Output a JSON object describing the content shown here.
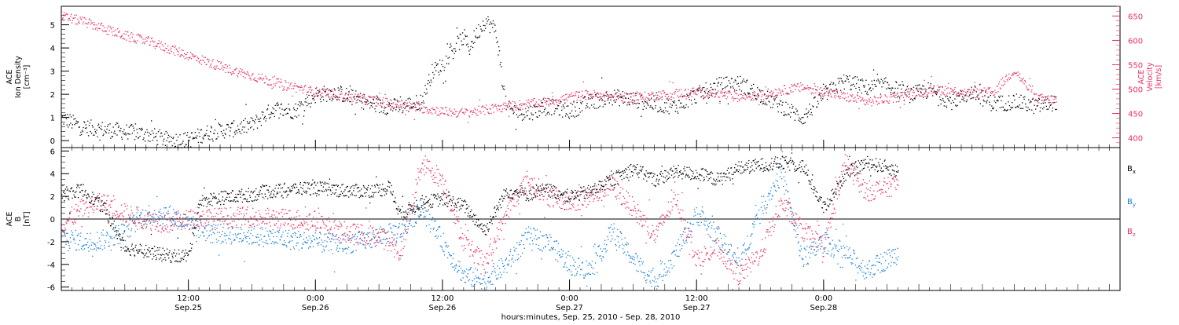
{
  "colors": {
    "black": "#000000",
    "pink": "#e8305e",
    "blue": "#1a7fd6"
  },
  "chart_data": [
    {
      "type": "scatter",
      "panel": "top",
      "ylabel_lines": [
        "ACE",
        "Ion Density",
        "[cm⁻³]"
      ],
      "y2label_lines": [
        "ACE",
        "Velocity",
        "[km/s]"
      ],
      "xlim": [
        -4,
        96
      ],
      "ylim": [
        -0.3,
        5.8
      ],
      "y_ticks": [
        0,
        1,
        2,
        3,
        4,
        5
      ],
      "y2lim": [
        380,
        670
      ],
      "y2_ticks": [
        400,
        450,
        500,
        550,
        600,
        650
      ],
      "series": [
        {
          "role": "Ion Density",
          "color": "black",
          "axis": "left",
          "x": [
            -4,
            -2,
            0,
            2,
            4,
            6,
            8,
            10,
            12,
            14,
            16,
            18,
            20,
            22,
            24,
            26,
            28,
            30,
            31,
            32,
            33,
            34,
            34.5,
            35,
            36,
            37,
            38,
            40,
            42,
            44,
            46,
            48,
            50,
            52,
            54,
            56,
            58,
            60,
            62,
            64,
            66,
            68,
            70,
            72,
            74,
            76,
            78,
            80,
            82,
            84,
            86,
            88,
            90
          ],
          "values": [
            1.0,
            0.6,
            0.5,
            0.4,
            0.3,
            0.05,
            0.05,
            0.4,
            0.5,
            0.7,
            1.4,
            1.3,
            2.0,
            2.1,
            1.8,
            1.5,
            1.5,
            1.7,
            3.0,
            3.3,
            4.0,
            4.5,
            4.0,
            4.5,
            5.2,
            4.8,
            1.4,
            1.2,
            1.5,
            1.3,
            1.7,
            1.9,
            1.8,
            1.6,
            1.5,
            2.0,
            2.4,
            2.5,
            2.0,
            1.5,
            1.0,
            2.0,
            2.6,
            2.3,
            2.4,
            2.0,
            2.2,
            1.7,
            2.1,
            1.6,
            1.7,
            1.5,
            1.7
          ]
        },
        {
          "role": "Velocity",
          "color": "pink",
          "axis": "right",
          "x": [
            -4,
            -2,
            0,
            2,
            4,
            6,
            8,
            10,
            12,
            14,
            16,
            18,
            20,
            22,
            24,
            26,
            28,
            30,
            32,
            34,
            36,
            38,
            40,
            42,
            44,
            46,
            48,
            50,
            52,
            54,
            56,
            58,
            60,
            62,
            64,
            66,
            68,
            70,
            72,
            74,
            76,
            78,
            80,
            82,
            84,
            86,
            88,
            90
          ],
          "values": [
            650,
            640,
            625,
            610,
            600,
            585,
            570,
            555,
            540,
            528,
            515,
            505,
            495,
            488,
            482,
            475,
            468,
            462,
            455,
            452,
            458,
            465,
            470,
            475,
            485,
            490,
            485,
            482,
            488,
            492,
            495,
            490,
            485,
            488,
            498,
            505,
            495,
            485,
            475,
            480,
            490,
            500,
            498,
            492,
            495,
            540,
            482,
            478
          ]
        }
      ]
    },
    {
      "type": "scatter",
      "panel": "bottom",
      "ylabel_lines": [
        "ACE",
        "B",
        "[nT]"
      ],
      "xlim": [
        -4,
        96
      ],
      "ylim": [
        -6.3,
        6.3
      ],
      "y_ticks": [
        -6,
        -4,
        -2,
        0,
        2,
        4,
        6
      ],
      "zero_line": true,
      "x_ticks": [
        {
          "t": 8,
          "time": "12:00",
          "date": "Sep.25"
        },
        {
          "t": 20,
          "time": "0:00",
          "date": "Sep.26"
        },
        {
          "t": 32,
          "time": "12:00",
          "date": "Sep.26"
        },
        {
          "t": 44,
          "time": "0:00",
          "date": "Sep.27"
        },
        {
          "t": 56,
          "time": "12:00",
          "date": "Sep.27"
        },
        {
          "t": 68,
          "time": "0:00",
          "date": "Sep.28"
        }
      ],
      "xlabel": "hours:minutes, Sep. 25, 2010 - Sep. 28, 2010",
      "series": [
        {
          "name": "B",
          "subscript": "x",
          "color": "black",
          "x": [
            -4,
            -2,
            0,
            2,
            4,
            6,
            8,
            9,
            10,
            12,
            14,
            16,
            18,
            20,
            22,
            24,
            26,
            27,
            28,
            30,
            32,
            34,
            36,
            38,
            40,
            42,
            44,
            46,
            48,
            50,
            52,
            54,
            56,
            58,
            60,
            62,
            64,
            66,
            68,
            70,
            72,
            74,
            75
          ],
          "values": [
            2.2,
            2.6,
            1.0,
            -2.5,
            -2.8,
            -3.2,
            -3.2,
            1.5,
            1.8,
            2.0,
            2.2,
            2.5,
            2.7,
            2.8,
            2.6,
            2.5,
            2.6,
            2.8,
            0.5,
            1.5,
            1.8,
            1.2,
            -1.0,
            2.5,
            2.2,
            2.6,
            2.0,
            2.5,
            3.5,
            4.5,
            3.5,
            4.2,
            4.0,
            3.5,
            4.5,
            4.8,
            5.0,
            4.7,
            1.0,
            4.0,
            5.0,
            4.6,
            4.2
          ]
        },
        {
          "name": "B",
          "subscript": "y",
          "color": "blue",
          "x": [
            -4,
            -2,
            0,
            2,
            4,
            6,
            8,
            10,
            12,
            14,
            16,
            18,
            20,
            22,
            24,
            26,
            28,
            30,
            32,
            34,
            36,
            38,
            40,
            42,
            44,
            46,
            48,
            50,
            52,
            54,
            56,
            58,
            60,
            62,
            64,
            66,
            68,
            70,
            72,
            74,
            75
          ],
          "values": [
            -1.5,
            -2.0,
            -1.8,
            -1.0,
            0.5,
            0.5,
            -0.5,
            -1.2,
            -1.3,
            -1.4,
            -1.6,
            -1.8,
            -2.0,
            -2.2,
            -2.0,
            -1.5,
            -1.0,
            1.0,
            -2.0,
            -5.0,
            -5.3,
            -4.0,
            -1.5,
            -2.0,
            -4.0,
            -4.5,
            -1.0,
            -3.5,
            -5.5,
            -3.0,
            0.5,
            -1.5,
            -4.0,
            1.0,
            4.0,
            -3.5,
            -2.0,
            -3.0,
            -4.5,
            -3.5,
            -3.0
          ]
        },
        {
          "name": "B",
          "subscript": "z",
          "color": "pink",
          "x": [
            -4,
            -2,
            0,
            2,
            4,
            6,
            8,
            10,
            12,
            14,
            16,
            18,
            20,
            22,
            24,
            26,
            27,
            28,
            30,
            32,
            34,
            36,
            38,
            40,
            42,
            44,
            46,
            48,
            50,
            52,
            54,
            56,
            58,
            60,
            62,
            64,
            66,
            68,
            70,
            72,
            74,
            75
          ],
          "values": [
            -0.5,
            1.0,
            1.5,
            0.5,
            0.0,
            -0.3,
            0.0,
            0.1,
            0.2,
            0.2,
            0.1,
            0.0,
            -0.1,
            -1.0,
            -1.3,
            -1.5,
            -2.0,
            -3.0,
            5.0,
            3.5,
            -2.0,
            -4.0,
            0.5,
            3.5,
            2.0,
            1.5,
            2.0,
            3.0,
            1.0,
            -1.5,
            2.0,
            -3.5,
            -2.5,
            -5.0,
            -3.0,
            1.5,
            -1.0,
            -2.5,
            5.0,
            2.5,
            2.8,
            3.2
          ]
        }
      ]
    }
  ]
}
